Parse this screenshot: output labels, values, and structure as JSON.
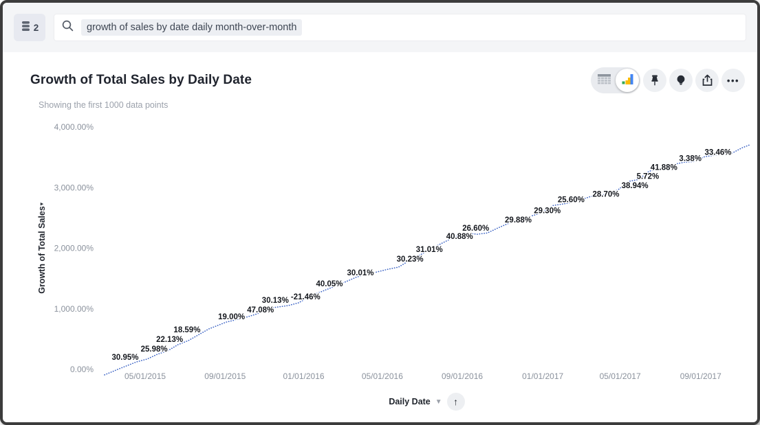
{
  "topbar": {
    "source_count": "2",
    "query": "growth of sales by date daily month-over-month"
  },
  "header": {
    "title": "Growth of Total Sales by Daily Date",
    "subtitle": "Showing the first 1000 data points",
    "actions": [
      "table-view",
      "chart-view",
      "pin",
      "insights",
      "share",
      "more"
    ]
  },
  "chart_data": {
    "type": "line",
    "title": "Growth of Total Sales by Daily Date",
    "subtitle": "Showing the first 1000 data points",
    "ylabel": "Growth of Total Sales",
    "xlabel": "Daily Date",
    "ylim": [
      0,
      4000
    ],
    "grid": false,
    "legend": false,
    "line_color": "#3a62c4",
    "line_style": "dotted",
    "y_ticks": [
      {
        "label": "4,000.00%",
        "value": 4000
      },
      {
        "label": "3,000.00%",
        "value": 3000
      },
      {
        "label": "2,000.00%",
        "value": 2000
      },
      {
        "label": "1,000.00%",
        "value": 1000
      },
      {
        "label": "0.00%",
        "value": 0
      }
    ],
    "x_ticks": [
      {
        "label": "05/01/2015",
        "x": 0.063
      },
      {
        "label": "09/01/2015",
        "x": 0.187
      },
      {
        "label": "01/01/2016",
        "x": 0.309
      },
      {
        "label": "05/01/2016",
        "x": 0.431
      },
      {
        "label": "09/01/2016",
        "x": 0.555
      },
      {
        "label": "01/01/2017",
        "x": 0.68
      },
      {
        "label": "05/01/2017",
        "x": 0.8
      },
      {
        "label": "09/01/2017",
        "x": 0.925
      }
    ],
    "point_labels": [
      {
        "text": "30.95%",
        "x": 0.032,
        "y": 204
      },
      {
        "text": "25.98%",
        "x": 0.077,
        "y": 340
      },
      {
        "text": "22.13%",
        "x": 0.101,
        "y": 498
      },
      {
        "text": "18.59%",
        "x": 0.128,
        "y": 657
      },
      {
        "text": "19.00%",
        "x": 0.197,
        "y": 872
      },
      {
        "text": "47.08%",
        "x": 0.242,
        "y": 985
      },
      {
        "text": "30.13%",
        "x": 0.265,
        "y": 1143
      },
      {
        "text": "-21.46%",
        "x": 0.312,
        "y": 1200
      },
      {
        "text": "40.05%",
        "x": 0.349,
        "y": 1415
      },
      {
        "text": "30.01%",
        "x": 0.397,
        "y": 1596
      },
      {
        "text": "30.23%",
        "x": 0.474,
        "y": 1822
      },
      {
        "text": "31.01%",
        "x": 0.504,
        "y": 1981
      },
      {
        "text": "40.88%",
        "x": 0.551,
        "y": 2196
      },
      {
        "text": "26.60%",
        "x": 0.576,
        "y": 2332
      },
      {
        "text": "29.88%",
        "x": 0.642,
        "y": 2468
      },
      {
        "text": "29.30%",
        "x": 0.687,
        "y": 2626
      },
      {
        "text": "25.60%",
        "x": 0.724,
        "y": 2807
      },
      {
        "text": "28.70%",
        "x": 0.778,
        "y": 2898
      },
      {
        "text": "38.94%",
        "x": 0.823,
        "y": 3034
      },
      {
        "text": "5.72%",
        "x": 0.843,
        "y": 3192
      },
      {
        "text": "41.88%",
        "x": 0.868,
        "y": 3339
      },
      {
        "text": "3.38%",
        "x": 0.909,
        "y": 3486
      },
      {
        "text": "33.46%",
        "x": 0.952,
        "y": 3588
      }
    ],
    "line_points": [
      [
        0.0,
        -91
      ],
      [
        0.023,
        11
      ],
      [
        0.05,
        125
      ],
      [
        0.066,
        170
      ],
      [
        0.082,
        249
      ],
      [
        0.098,
        306
      ],
      [
        0.114,
        408
      ],
      [
        0.13,
        475
      ],
      [
        0.162,
        668
      ],
      [
        0.189,
        781
      ],
      [
        0.216,
        849
      ],
      [
        0.237,
        917
      ],
      [
        0.253,
        1007
      ],
      [
        0.269,
        1030
      ],
      [
        0.285,
        1053
      ],
      [
        0.301,
        1098
      ],
      [
        0.32,
        1211
      ],
      [
        0.338,
        1290
      ],
      [
        0.365,
        1404
      ],
      [
        0.392,
        1528
      ],
      [
        0.418,
        1596
      ],
      [
        0.44,
        1653
      ],
      [
        0.456,
        1687
      ],
      [
        0.472,
        1789
      ],
      [
        0.488,
        1879
      ],
      [
        0.509,
        2003
      ],
      [
        0.53,
        2117
      ],
      [
        0.546,
        2196
      ],
      [
        0.562,
        2252
      ],
      [
        0.578,
        2230
      ],
      [
        0.594,
        2252
      ],
      [
        0.61,
        2332
      ],
      [
        0.632,
        2434
      ],
      [
        0.653,
        2502
      ],
      [
        0.674,
        2569
      ],
      [
        0.696,
        2705
      ],
      [
        0.717,
        2739
      ],
      [
        0.738,
        2796
      ],
      [
        0.754,
        2852
      ],
      [
        0.776,
        2886
      ],
      [
        0.797,
        2966
      ],
      [
        0.813,
        3101
      ],
      [
        0.829,
        3135
      ],
      [
        0.845,
        3271
      ],
      [
        0.861,
        3305
      ],
      [
        0.883,
        3384
      ],
      [
        0.899,
        3418
      ],
      [
        0.915,
        3430
      ],
      [
        0.931,
        3509
      ],
      [
        0.952,
        3543
      ],
      [
        0.973,
        3565
      ],
      [
        0.989,
        3656
      ],
      [
        1.0,
        3701
      ]
    ]
  },
  "xaxis_control": {
    "label": "Daily Date"
  }
}
